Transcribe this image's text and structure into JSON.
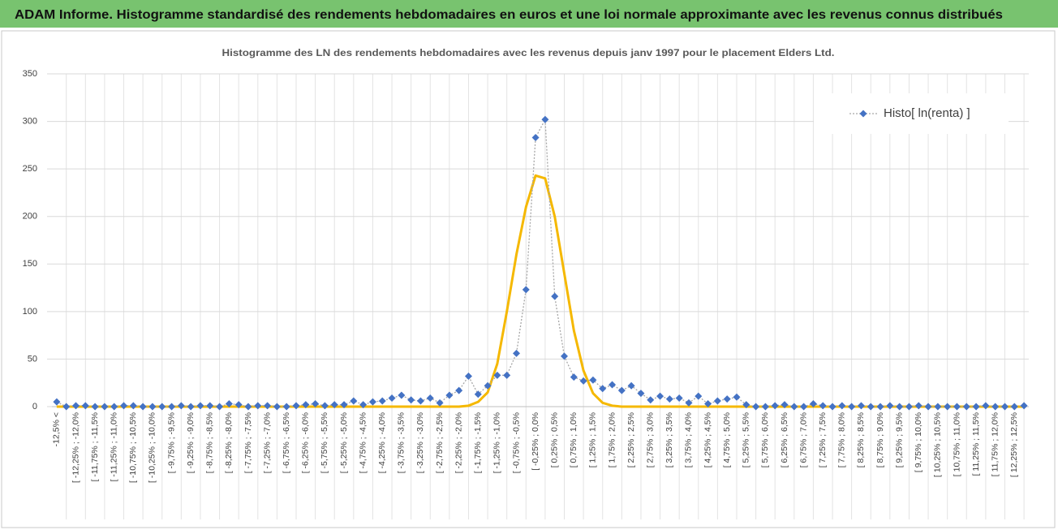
{
  "header": {
    "title": "ADAM Informe. Histogramme standardisé des rendements hebdomadaires en euros et une loi normale approximante avec les revenus connus distribués"
  },
  "chart_data": {
    "type": "line",
    "title": "Histogramme des LN des rendements hebdomadaires avec les revenus depuis janv 1997 pour le placement Elders Ltd.",
    "categories": [
      "-12,5% <",
      null,
      "[ -12,25% ; -12,0%",
      null,
      "[ -11,75% ; -11,5%",
      null,
      "[ -11,25% ; -11,0%",
      null,
      "[ -10,75% ; -10,5%",
      null,
      "[ -10,25% ; -10,0%",
      null,
      "[ -9,75% ; -9,5%",
      null,
      "[ -9,25% ; -9,0%",
      null,
      "[ -8,75% ; -8,5%",
      null,
      "[ -8,25% ; -8,0%",
      null,
      "[ -7,75% ; -7,5%",
      null,
      "[ -7,25% ; -7,0%",
      null,
      "[ -6,75% ; -6,5%",
      null,
      "[ -6,25% ; -6,0%",
      null,
      "[ -5,75% ; -5,5%",
      null,
      "[ -5,25% ; -5,0%",
      null,
      "[ -4,75% ; -4,5%",
      null,
      "[ -4,25% ; -4,0%",
      null,
      "[ -3,75% ; -3,5%",
      null,
      "[ -3,25% ; -3,0%",
      null,
      "[ -2,75% ; -2,5%",
      null,
      "[ -2,25% ; -2,0%",
      null,
      "[ -1,75% ; -1,5%",
      null,
      "[ -1,25% ; -1,0%",
      null,
      "[ -0,75% ; -0,5%",
      null,
      "[ -0,25% ; 0,0%",
      null,
      "[ 0,25% ; 0,5%",
      null,
      "[ 0,75% ; 1,0%",
      null,
      "[ 1,25% ; 1,5%",
      null,
      "[ 1,75% ; 2,0%",
      null,
      "[ 2,25% ; 2,5%",
      null,
      "[ 2,75% ; 3,0%",
      null,
      "[ 3,25% ; 3,5%",
      null,
      "[ 3,75% ; 4,0%",
      null,
      "[ 4,25% ; 4,5%",
      null,
      "[ 4,75% ; 5,0%",
      null,
      "[ 5,25% ; 5,5%",
      null,
      "[ 5,75% ; 6,0%",
      null,
      "[ 6,25% ; 6,5%",
      null,
      "[ 6,75% ; 7,0%",
      null,
      "[ 7,25% ; 7,5%",
      null,
      "[ 7,75% ; 8,0%",
      null,
      "[ 8,25% ; 8,5%",
      null,
      "[ 8,75% ; 9,0%",
      null,
      "[ 9,25% ; 9,5%",
      null,
      "[ 9,75% ; 10,0%",
      null,
      "[ 10,25% ; 10,5%",
      null,
      "[ 10,75% ; 11,0%",
      null,
      "[ 11,25% ; 11,5%",
      null,
      "[ 11,75% ; 12,0%",
      null,
      "[ 12,25% ; 12,5%",
      null
    ],
    "series": [
      {
        "name": "Histo[ ln(renta) ]",
        "color": "#4472c4",
        "marker": "diamond",
        "line": "dotted",
        "values": [
          5,
          0,
          1,
          1,
          0,
          0,
          0,
          1,
          1,
          0,
          0,
          0,
          0,
          1,
          0,
          1,
          1,
          0,
          3,
          2,
          0,
          1,
          1,
          0,
          0,
          1,
          2,
          3,
          1,
          2,
          2,
          6,
          2,
          5,
          6,
          9,
          12,
          7,
          6,
          9,
          4,
          12,
          17,
          32,
          13,
          22,
          33,
          33,
          56,
          123,
          283,
          302,
          116,
          53,
          31,
          27,
          28,
          19,
          23,
          17,
          22,
          14,
          7,
          11,
          8,
          9,
          4,
          11,
          3,
          6,
          8,
          10,
          2,
          0,
          0,
          1,
          2,
          0,
          0,
          3,
          1,
          0,
          1,
          0,
          1,
          0,
          0,
          1,
          0,
          0,
          1,
          0,
          0,
          0,
          0,
          0,
          0,
          1,
          0,
          0,
          0,
          1
        ]
      },
      {
        "color": "#f5b800",
        "marker": "none",
        "line": "solid",
        "values": [
          0,
          0,
          0,
          0,
          0,
          0,
          0,
          0,
          0,
          0,
          0,
          0,
          0,
          0,
          0,
          0,
          0,
          0,
          0,
          0,
          0,
          0,
          0,
          0,
          0,
          0,
          0,
          0,
          0,
          0,
          0,
          0,
          0,
          0,
          0,
          0,
          0,
          0,
          0,
          0,
          0,
          0,
          0,
          1,
          5,
          15,
          45,
          100,
          160,
          210,
          243,
          240,
          200,
          140,
          80,
          38,
          14,
          4,
          1,
          0,
          0,
          0,
          0,
          0,
          0,
          0,
          0,
          0,
          0,
          0,
          0,
          0,
          0,
          0,
          0,
          0,
          0,
          0,
          0,
          0,
          0,
          0,
          0,
          0,
          0,
          0,
          0,
          0,
          0,
          0,
          0,
          0,
          0,
          0,
          0,
          0,
          0,
          0,
          0,
          0,
          0,
          0
        ]
      }
    ],
    "ylim": [
      0,
      350
    ],
    "yticks": [
      0,
      50,
      100,
      150,
      200,
      250,
      300,
      350
    ],
    "grid": true,
    "legend": "top-right"
  }
}
